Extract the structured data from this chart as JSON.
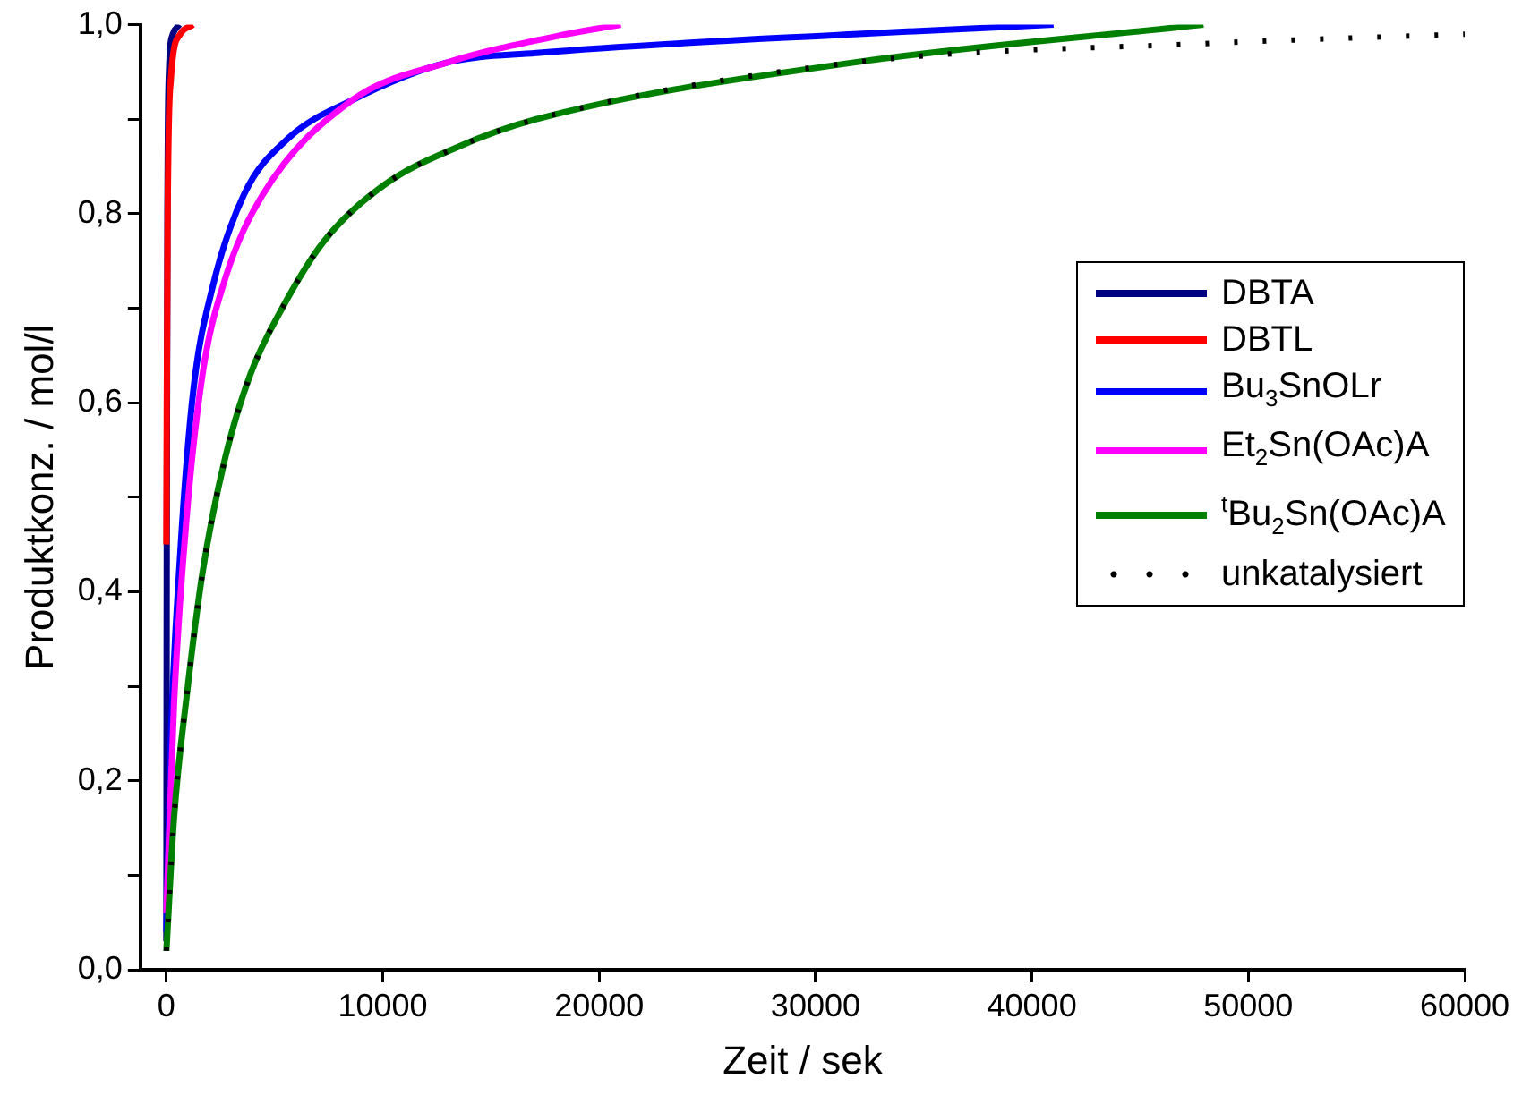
{
  "chart_data": {
    "type": "line",
    "xlabel": "Zeit / sek",
    "ylabel": "Produktkonz. / mol/l",
    "xlim": [
      -1200,
      60000
    ],
    "ylim": [
      0,
      1
    ],
    "xticks": [
      0,
      10000,
      20000,
      30000,
      40000,
      50000,
      60000
    ],
    "yticks": [
      {
        "value": 0,
        "label": "0,0"
      },
      {
        "value": 0.1,
        "label": null
      },
      {
        "value": 0.2,
        "label": "0,2"
      },
      {
        "value": 0.3,
        "label": null
      },
      {
        "value": 0.4,
        "label": "0,4"
      },
      {
        "value": 0.5,
        "label": null
      },
      {
        "value": 0.6,
        "label": "0,6"
      },
      {
        "value": 0.7,
        "label": null
      },
      {
        "value": 0.8,
        "label": "0,8"
      },
      {
        "value": 0.9,
        "label": null
      },
      {
        "value": 1,
        "label": "1,0"
      }
    ],
    "grid": false,
    "legend": "right",
    "marker": "none",
    "series": [
      {
        "name": "DBTA",
        "color": "#000080",
        "x": [
          0,
          20,
          50,
          120,
          300,
          600
        ],
        "values": [
          0.03,
          0.5,
          0.8,
          0.95,
          0.99,
          1.0
        ]
      },
      {
        "name": "DBTL",
        "color": "#ff0000",
        "x": [
          0,
          20,
          60,
          200,
          640,
          1230
        ],
        "values": [
          0.45,
          0.6,
          0.8,
          0.94,
          0.99,
          1.0
        ]
      },
      {
        "name": "Bu$_{3}$SnOLr",
        "color": "#0000ff",
        "x": [
          0,
          200,
          640,
          1230,
          2110,
          3580,
          5640,
          8570,
          12980,
          17100,
          31770,
          41000
        ],
        "values": [
          0.04,
          0.24,
          0.44,
          0.61,
          0.72,
          0.82,
          0.88,
          0.92,
          0.96,
          0.97,
          0.99,
          1.0
        ]
      },
      {
        "name": "Et$_{2}$Sn(OAc)A",
        "color": "#ff00ff",
        "x": [
          0,
          350,
          940,
          1670,
          2700,
          4450,
          8570,
          12980,
          18500,
          21000
        ],
        "values": [
          0.06,
          0.28,
          0.48,
          0.63,
          0.73,
          0.82,
          0.92,
          0.96,
          0.99,
          1.0
        ]
      },
      {
        "name": "$^{t}$Bu$_{2}$Sn(OAc)A",
        "color": "#008000",
        "x": [
          0,
          350,
          940,
          1670,
          2700,
          3880,
          5350,
          7250,
          10040,
          13400,
          17100,
          31770,
          47930
        ],
        "values": [
          0.02,
          0.16,
          0.29,
          0.42,
          0.54,
          0.63,
          0.7,
          0.77,
          0.83,
          0.87,
          0.9,
          0.96,
          1.0
        ]
      },
      {
        "name": "unkatalysiert",
        "color": "#000000",
        "line_style": "dotted",
        "x": [
          0,
          350,
          940,
          1670,
          2700,
          3880,
          5350,
          7250,
          10040,
          13400,
          17100,
          31770,
          47930,
          60000
        ],
        "values": [
          0.02,
          0.16,
          0.29,
          0.42,
          0.54,
          0.63,
          0.7,
          0.77,
          0.83,
          0.87,
          0.9,
          0.96,
          0.98,
          0.99
        ]
      }
    ]
  }
}
